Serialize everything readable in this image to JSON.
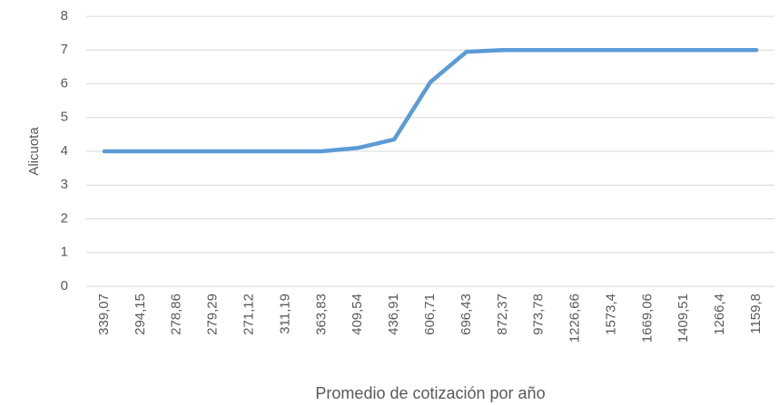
{
  "chart_data": {
    "type": "line",
    "x_label": "Promedio de cotización por año",
    "y_label": "Alicuota",
    "categories": [
      "339,07",
      "294,15",
      "278,86",
      "279,29",
      "271,12",
      "311,19",
      "363,83",
      "409,54",
      "436,91",
      "606,71",
      "696,43",
      "872,37",
      "973,78",
      "1226,66",
      "1573,4",
      "1669,06",
      "1409,51",
      "1266,4",
      "1159,8"
    ],
    "values": [
      4,
      4,
      4,
      4,
      4,
      4,
      4,
      4.1,
      4.35,
      6.05,
      6.95,
      7,
      7,
      7,
      7,
      7,
      7,
      7,
      7
    ],
    "color": "#5b9bd5",
    "ylim": [
      0,
      8
    ],
    "yticks": [
      0,
      1,
      2,
      3,
      4,
      5,
      6,
      7,
      8
    ],
    "grid": true
  }
}
